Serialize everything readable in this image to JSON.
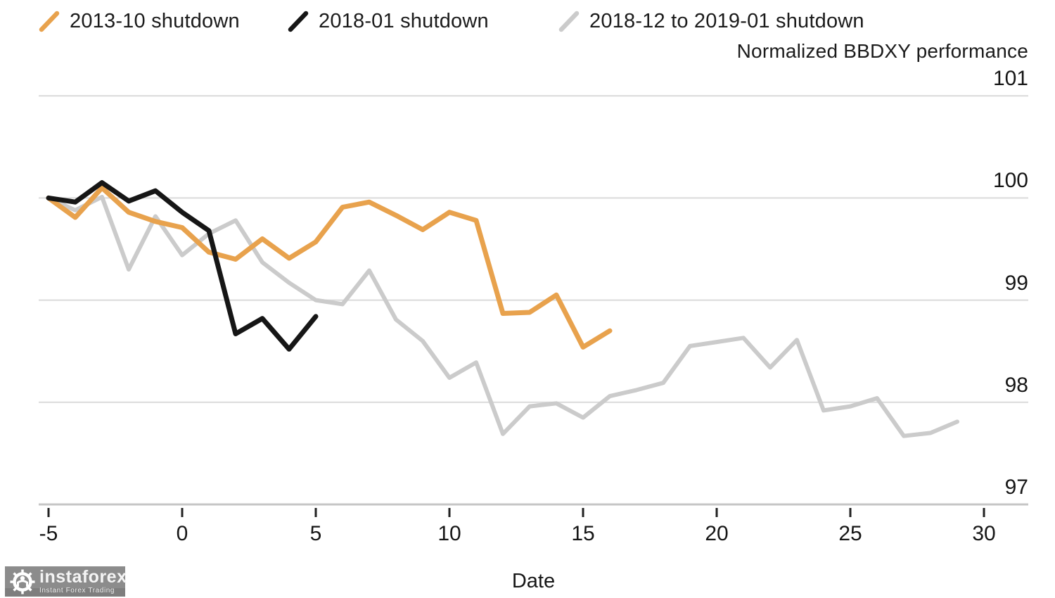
{
  "chart_data": {
    "type": "line",
    "title": "Normalized BBDXY performance",
    "xlabel": "Date",
    "x_ticks": [
      -5,
      0,
      5,
      10,
      15,
      20,
      25,
      30
    ],
    "y_tick_labels": [
      101,
      100,
      99,
      98,
      97
    ],
    "y_gridlines": [
      101,
      100,
      99,
      98
    ],
    "xlim": [
      -5,
      30
    ],
    "ylim": [
      97,
      101
    ],
    "grid": "horizontal",
    "legend_position": "top-left",
    "series": [
      {
        "name": "2013-10 shutdown",
        "color": "#E8A24D",
        "width": 7,
        "z": 1,
        "x_start": -5,
        "values": [
          100.0,
          99.81,
          100.1,
          99.86,
          99.77,
          99.71,
          99.47,
          99.4,
          99.6,
          99.41,
          99.57,
          99.91,
          99.96,
          99.83,
          99.69,
          99.86,
          99.78,
          98.87,
          98.88,
          99.05,
          98.54,
          98.7
        ]
      },
      {
        "name": "2018-01 shutdown",
        "color": "#161616",
        "width": 7,
        "z": 2,
        "x_start": -5,
        "values": [
          100.0,
          99.96,
          100.15,
          99.97,
          100.07,
          99.86,
          99.68,
          98.67,
          98.82,
          98.52,
          98.84
        ]
      },
      {
        "name": "2018-12 to 2019-01 shutdown",
        "color": "#CBCBCB",
        "width": 6,
        "z": 0,
        "x_start": -5,
        "values": [
          100.0,
          99.88,
          100.01,
          99.3,
          99.82,
          99.44,
          99.65,
          99.78,
          99.37,
          99.17,
          99.0,
          98.96,
          99.29,
          98.81,
          98.6,
          98.24,
          98.39,
          97.69,
          97.96,
          97.99,
          97.85,
          98.06,
          98.12,
          98.19,
          98.55,
          98.59,
          98.63,
          98.34,
          98.61,
          97.92,
          97.96,
          98.04,
          97.67,
          97.7,
          97.81
        ]
      }
    ]
  },
  "watermark": {
    "brand": "instaforex",
    "tagline": "Instant Forex Trading"
  }
}
